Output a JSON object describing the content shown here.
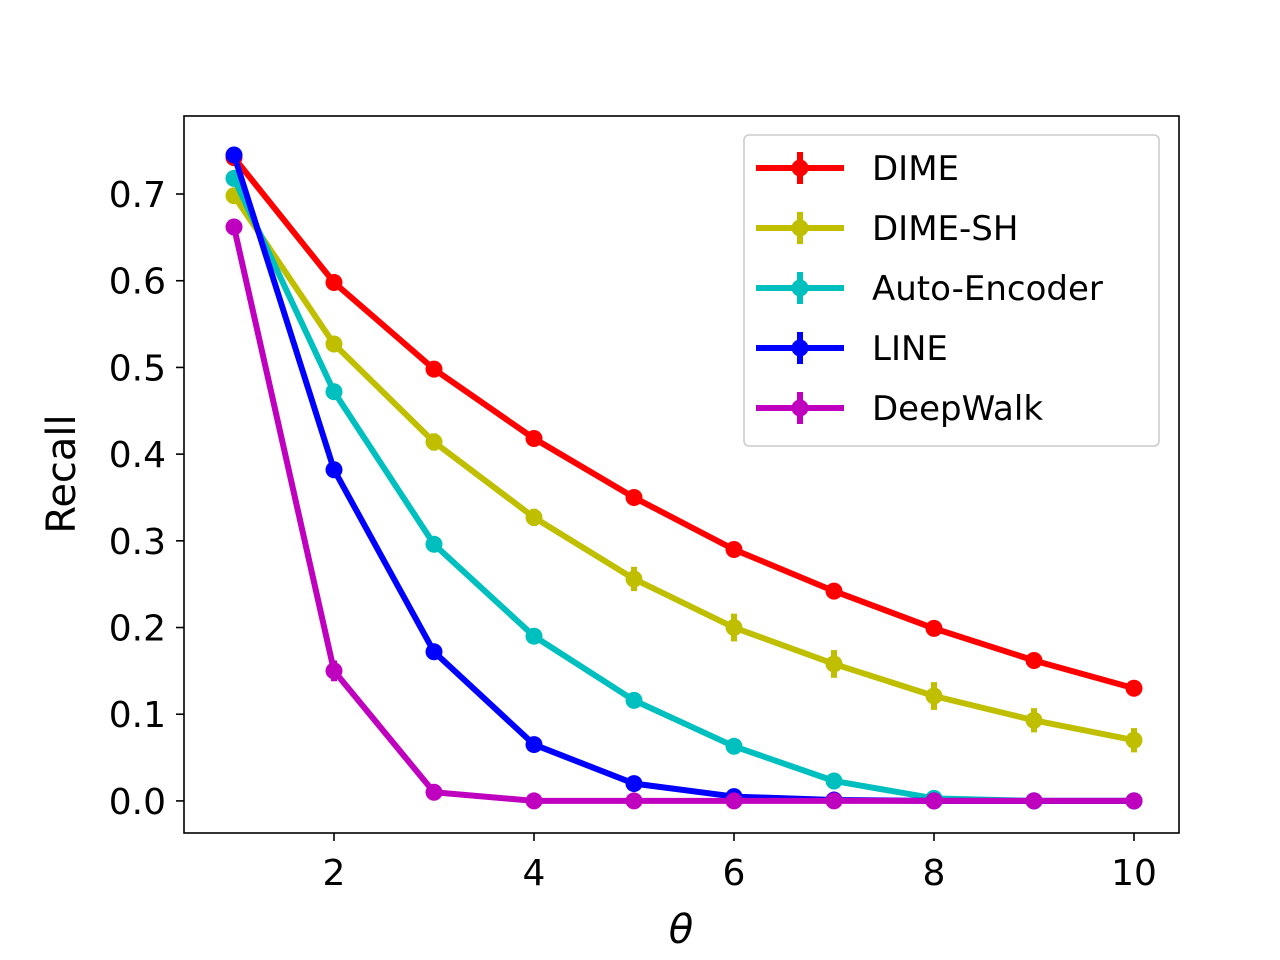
{
  "chart_data": {
    "type": "line",
    "title": "",
    "xlabel": "θ",
    "ylabel": "Recall",
    "xlim": [
      0.5,
      10.45
    ],
    "ylim": [
      -0.037,
      0.79
    ],
    "xticks": [
      2,
      4,
      6,
      8,
      10
    ],
    "yticks": [
      0.0,
      0.1,
      0.2,
      0.3,
      0.4,
      0.5,
      0.6,
      0.7
    ],
    "xtick_labels": [
      "2",
      "4",
      "6",
      "8",
      "10"
    ],
    "ytick_labels": [
      "0.0",
      "0.1",
      "0.2",
      "0.3",
      "0.4",
      "0.5",
      "0.6",
      "0.7"
    ],
    "legend_position": "top-right",
    "x": [
      1,
      2,
      3,
      4,
      5,
      6,
      7,
      8,
      9,
      10
    ],
    "series": [
      {
        "name": "DIME",
        "color": "#ff0000",
        "values": [
          0.742,
          0.598,
          0.498,
          0.418,
          0.35,
          0.29,
          0.242,
          0.199,
          0.162,
          0.13
        ],
        "errors": [
          0.006,
          0.006,
          0.006,
          0.006,
          0.008,
          0.008,
          0.008,
          0.008,
          0.008,
          0.008
        ]
      },
      {
        "name": "DIME-SH",
        "color": "#bfbf00",
        "values": [
          0.698,
          0.527,
          0.414,
          0.327,
          0.256,
          0.2,
          0.158,
          0.121,
          0.093,
          0.07
        ],
        "errors": [
          0.006,
          0.008,
          0.01,
          0.01,
          0.014,
          0.016,
          0.016,
          0.016,
          0.014,
          0.014
        ]
      },
      {
        "name": "Auto-Encoder",
        "color": "#00bfbf",
        "values": [
          0.718,
          0.472,
          0.296,
          0.19,
          0.116,
          0.063,
          0.023,
          0.003,
          0.0,
          0.0
        ],
        "errors": [
          0.006,
          0.008,
          0.008,
          0.008,
          0.006,
          0.006,
          0.006,
          0.004,
          0.002,
          0.002
        ]
      },
      {
        "name": "LINE",
        "color": "#0000ff",
        "values": [
          0.745,
          0.382,
          0.172,
          0.065,
          0.02,
          0.005,
          0.001,
          0.0,
          0.0,
          0.0
        ],
        "errors": [
          0.006,
          0.008,
          0.008,
          0.006,
          0.004,
          0.002,
          0.001,
          0.001,
          0.001,
          0.001
        ]
      },
      {
        "name": "DeepWalk",
        "color": "#bf00bf",
        "values": [
          0.662,
          0.15,
          0.01,
          0.0,
          0.0,
          0.0,
          0.0,
          0.0,
          0.0,
          0.0
        ],
        "errors": [
          0.006,
          0.012,
          0.006,
          0.002,
          0.001,
          0.001,
          0.001,
          0.001,
          0.001,
          0.001
        ]
      }
    ]
  }
}
